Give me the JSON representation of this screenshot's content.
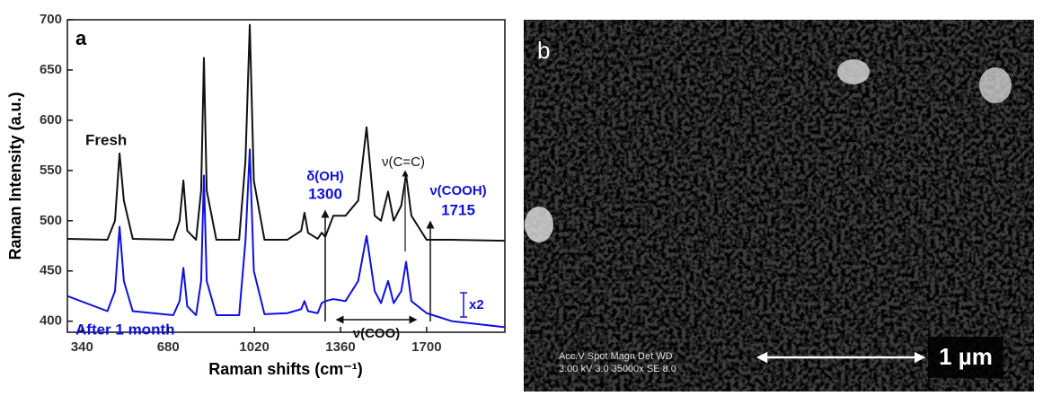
{
  "chart_data": {
    "type": "line",
    "xlabel": "Raman shifts (cm⁻¹)",
    "ylabel": "Raman Intensity (a.u.)",
    "x": [
      282,
      440,
      470,
      488,
      505,
      540,
      700,
      725,
      740,
      755,
      790,
      810,
      821,
      832,
      870,
      960,
      985,
      1002,
      1018,
      1060,
      1150,
      1205,
      1218,
      1232,
      1270,
      1286,
      1300,
      1332,
      1380,
      1430,
      1463,
      1495,
      1520,
      1548,
      1570,
      1600,
      1619,
      1640,
      1700,
      1800,
      2009
    ],
    "series": [
      {
        "name": "Fresh",
        "color": "#111111",
        "values": [
          482,
          481,
          500,
          567,
          520,
          482,
          481,
          500,
          540,
          490,
          481,
          530,
          662,
          530,
          481,
          481,
          560,
          695,
          540,
          481,
          481,
          490,
          508,
          488,
          482,
          488,
          484,
          505,
          505,
          520,
          593,
          505,
          500,
          529,
          500,
          515,
          546,
          505,
          481,
          481,
          480
        ]
      },
      {
        "name": "After 1 month",
        "color": "#1010e0",
        "values": [
          425,
          410,
          430,
          494,
          440,
          410,
          406,
          420,
          453,
          415,
          406,
          440,
          545,
          440,
          406,
          406,
          480,
          571,
          450,
          407,
          408,
          412,
          420,
          410,
          408,
          418,
          420,
          422,
          420,
          440,
          485,
          430,
          418,
          440,
          418,
          430,
          459,
          420,
          408,
          400,
          394
        ]
      }
    ],
    "xlim": [
      282,
      2009
    ],
    "xticks": [
      340,
      680,
      1020,
      1360,
      1700
    ],
    "ylim": [
      389,
      700
    ],
    "yticks": [
      400,
      450,
      500,
      550,
      600,
      650,
      700
    ],
    "panel_label": "a",
    "annotations": [
      "δ(OH)",
      "1300",
      "ν(C=C)",
      "ν(COOH)",
      "1715",
      "ν(COO)",
      "x2"
    ]
  },
  "sem_panel": {
    "label": "b",
    "scale_bar": "1 µm",
    "info_header": "Acc.V   Spot Magn    Det   WD",
    "info_values": "3.00 kV 3.0  35000x   SE   8.0"
  }
}
